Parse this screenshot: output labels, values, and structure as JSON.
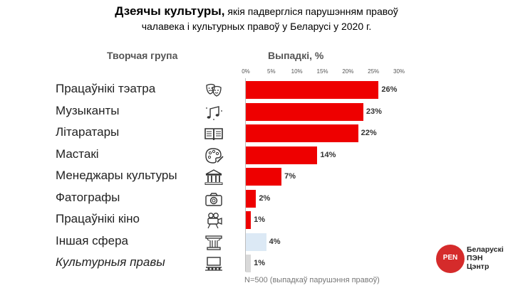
{
  "title": {
    "main": "Дзеячы культуры,",
    "rest": " якія падвергліся парушэнням правоў",
    "line2": "чалавека і культурных правоў у Беларусі у 2020 г."
  },
  "headers": {
    "group": "Творчая група",
    "cases": "Выпадкі, %"
  },
  "note": "N=500 (выпадкаў парушэння правоў)",
  "logo": {
    "circle_text": "PEN",
    "line1": "Беларускі",
    "line2": "ПЭН",
    "line3": "Цэнтр"
  },
  "colors": {
    "primary": "#ee0000",
    "other": "#dce9f5",
    "rights": "#d9d9d9",
    "logo": "#d52b2b"
  },
  "chart_data": {
    "type": "bar",
    "orientation": "horizontal",
    "xlim": [
      0,
      30
    ],
    "ticks": [
      "0%",
      "5%",
      "10%",
      "15%",
      "20%",
      "25%",
      "30%"
    ],
    "tick_values": [
      0,
      5,
      10,
      15,
      20,
      25,
      30
    ],
    "categories": [
      "Працаўнікі тэатра",
      "Музыканты",
      "Літаратары",
      "Мастакі",
      "Менеджары культуры",
      "Фатографы",
      "Працаўнікі кіно",
      "Іншая сфера",
      "Культурныя правы"
    ],
    "values": [
      26,
      23,
      22,
      14,
      7,
      2,
      1,
      4,
      1
    ],
    "value_labels": [
      "26%",
      "23%",
      "22%",
      "14%",
      "7%",
      "2%",
      "1%",
      "4%",
      "1%"
    ],
    "bar_colors": [
      "#ee0000",
      "#ee0000",
      "#ee0000",
      "#ee0000",
      "#ee0000",
      "#ee0000",
      "#ee0000",
      "#dce9f5",
      "#d9d9d9"
    ],
    "icons": [
      "theater-masks-icon",
      "music-notes-icon",
      "book-icon",
      "palette-icon",
      "museum-icon",
      "camera-icon",
      "film-camera-icon",
      "column-icon",
      "stage-icon"
    ],
    "italic": [
      false,
      false,
      false,
      false,
      false,
      false,
      false,
      false,
      true
    ]
  }
}
